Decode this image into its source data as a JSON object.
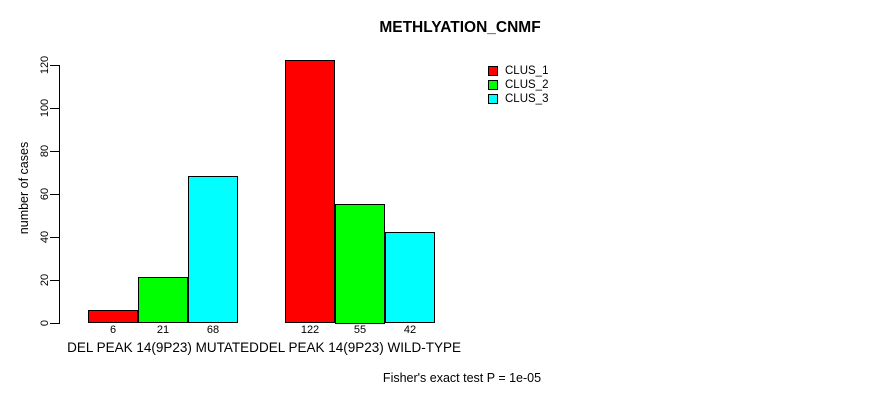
{
  "chart_data": {
    "type": "bar",
    "title": "METHLYATION_CNMF",
    "ylabel": "number of cases",
    "ylim": [
      0,
      120
    ],
    "yticks": [
      0,
      20,
      40,
      60,
      80,
      100,
      120
    ],
    "grid": false,
    "legend_position": "top-right",
    "categories": [
      "DEL PEAK 14(9P23) MUTATED",
      "DEL PEAK 14(9P23) WILD-TYPE"
    ],
    "series": [
      {
        "name": "CLUS_1",
        "color": "#FF0000",
        "values": [
          6,
          122
        ]
      },
      {
        "name": "CLUS_2",
        "color": "#00FF00",
        "values": [
          21,
          55
        ]
      },
      {
        "name": "CLUS_3",
        "color": "#00FFFF",
        "values": [
          68,
          42
        ]
      }
    ],
    "bar_labels_shown": true,
    "annotation": "Fisher's exact test P = 1e-05"
  }
}
